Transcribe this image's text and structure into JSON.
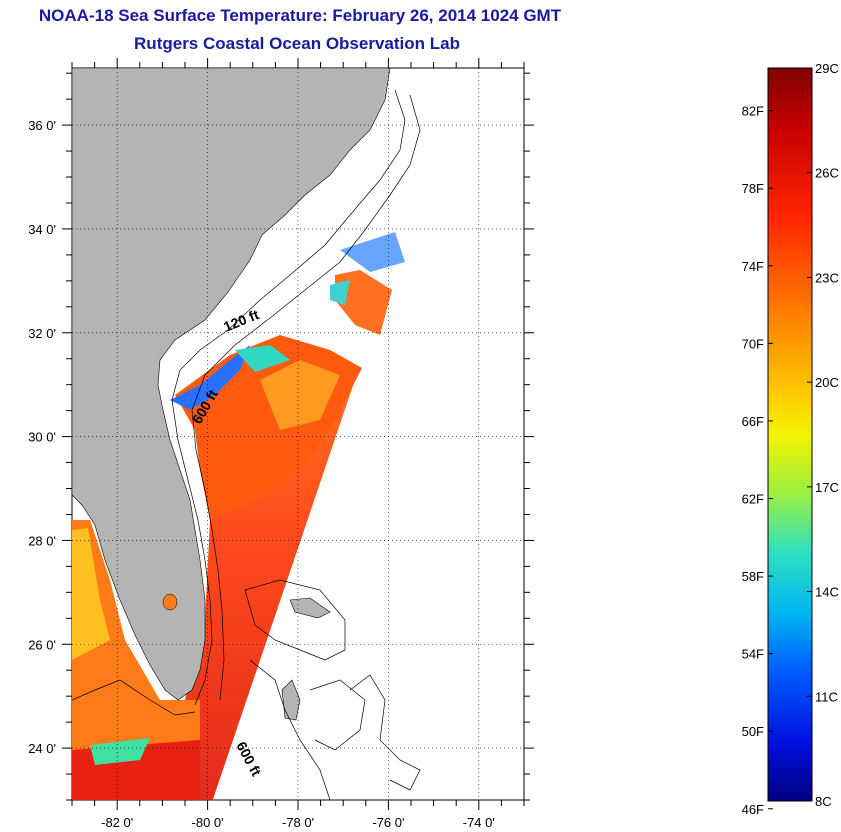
{
  "header": {
    "title": "NOAA-18 Sea Surface Temperature:  February 26, 2014 1024 GMT",
    "subtitle": "Rutgers Coastal Ocean Observation Lab"
  },
  "map": {
    "lat_labels": [
      "36 0'",
      "34 0'",
      "32 0'",
      "30 0'",
      "28 0'",
      "26 0'",
      "24 0'"
    ],
    "lat_values": [
      36,
      34,
      32,
      30,
      28,
      26,
      24
    ],
    "lon_labels": [
      "-82 0'",
      "-80 0'",
      "-78 0'",
      "-76 0'",
      "-74 0'"
    ],
    "lon_values": [
      -82,
      -80,
      -78,
      -76,
      -74
    ],
    "lat_range": [
      23,
      37.1
    ],
    "lon_range": [
      -83,
      -73
    ],
    "depth_labels": [
      "120 ft",
      "600 ft",
      "600 ft"
    ],
    "land_color": "#b4b4b4"
  },
  "colorbar": {
    "fahrenheit_labels": [
      "82F",
      "78F",
      "74F",
      "70F",
      "66F",
      "62F",
      "58F",
      "54F",
      "50F",
      "46F"
    ],
    "celsius_labels": [
      "29C",
      "26C",
      "23C",
      "20C",
      "17C",
      "14C",
      "11C",
      "8C"
    ],
    "gradient": [
      "#800000",
      "#d00000",
      "#ff2a00",
      "#ff7a00",
      "#ffc000",
      "#f4f400",
      "#9cf040",
      "#30e0c0",
      "#00b8f0",
      "#0060ff",
      "#0010e0",
      "#000080"
    ]
  }
}
